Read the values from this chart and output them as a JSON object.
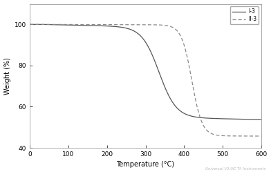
{
  "title": "",
  "xlabel": "Temperature (°C)",
  "ylabel": "Weight (%)",
  "xlim": [
    0,
    600
  ],
  "ylim": [
    40,
    110
  ],
  "yticks": [
    40,
    60,
    80,
    100
  ],
  "xticks": [
    0,
    100,
    200,
    300,
    400,
    500,
    600
  ],
  "legend_labels": [
    "I-3",
    "II-3"
  ],
  "watermark": "Universal V3.0G TA Instruments",
  "line1_color": "#555555",
  "line2_color": "#888888",
  "background_color": "#ffffff",
  "curve1": {
    "x_flat_end": 250,
    "x_drop_center": 335,
    "drop_steepness": 0.045,
    "y_start": 100.0,
    "y_end": 55.0,
    "drop_amount": 44.0
  },
  "curve2": {
    "x_flat_end": 380,
    "x_drop_center": 420,
    "drop_steepness": 0.075,
    "y_start": 100.0,
    "y_end": 45.0,
    "drop_amount": 54.0
  }
}
